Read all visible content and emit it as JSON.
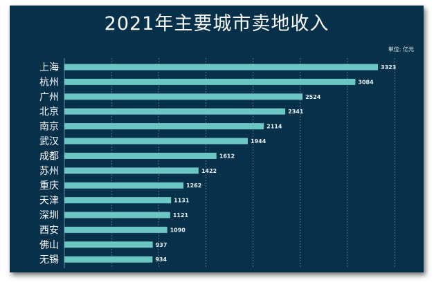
{
  "chart_data": {
    "type": "bar",
    "orientation": "horizontal",
    "title": "2021年主要城市卖地收入",
    "unit": "单位: 亿元",
    "categories": [
      "上海",
      "杭州",
      "广州",
      "北京",
      "南京",
      "武汉",
      "成都",
      "苏州",
      "重庆",
      "天津",
      "深圳",
      "西安",
      "佛山",
      "无锡"
    ],
    "values": [
      3323,
      3084,
      2524,
      2341,
      2114,
      1944,
      1612,
      1422,
      1262,
      1131,
      1121,
      1090,
      937,
      934
    ],
    "xlim": [
      0,
      3500
    ],
    "grid": true,
    "colors": {
      "background": "#07304b",
      "bar": "#6cc6c2",
      "grid": "#6e879a",
      "text": "#ffffff"
    }
  }
}
